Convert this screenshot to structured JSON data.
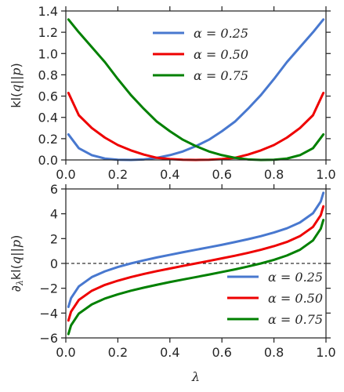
{
  "colors": {
    "alpha_025": "#4878cf",
    "alpha_050": "#ee0000",
    "alpha_075": "#008000"
  },
  "chart_data": [
    {
      "type": "line",
      "ylabel": "kl(q||p)",
      "xlim": [
        0.0,
        1.0
      ],
      "ylim": [
        0.0,
        1.4
      ],
      "xticks": [
        "0.0",
        "0.2",
        "0.4",
        "0.6",
        "0.8",
        "1.0"
      ],
      "yticks": [
        "0.0",
        "0.2",
        "0.4",
        "0.6",
        "0.8",
        "1.0",
        "1.2",
        "1.4"
      ],
      "grid": false,
      "legend": "top-center",
      "series": [
        {
          "name": "α = 0.25",
          "color_key": "alpha_025",
          "x": [
            0.01,
            0.05,
            0.1,
            0.15,
            0.2,
            0.25,
            0.3,
            0.35,
            0.4,
            0.45,
            0.5,
            0.55,
            0.6,
            0.65,
            0.7,
            0.75,
            0.8,
            0.85,
            0.9,
            0.95,
            0.99
          ],
          "y": [
            0.24,
            0.11,
            0.045,
            0.013,
            0.002,
            0.0,
            0.005,
            0.02,
            0.045,
            0.08,
            0.13,
            0.19,
            0.27,
            0.36,
            0.48,
            0.61,
            0.76,
            0.92,
            1.06,
            1.2,
            1.32
          ]
        },
        {
          "name": "α = 0.50",
          "color_key": "alpha_050",
          "x": [
            0.01,
            0.05,
            0.1,
            0.15,
            0.2,
            0.25,
            0.3,
            0.35,
            0.4,
            0.45,
            0.5,
            0.55,
            0.6,
            0.65,
            0.7,
            0.75,
            0.8,
            0.85,
            0.9,
            0.95,
            0.99
          ],
          "y": [
            0.63,
            0.42,
            0.3,
            0.21,
            0.14,
            0.09,
            0.05,
            0.02,
            0.008,
            0.002,
            0.0,
            0.002,
            0.008,
            0.02,
            0.05,
            0.09,
            0.14,
            0.21,
            0.3,
            0.42,
            0.63
          ]
        },
        {
          "name": "α = 0.75",
          "color_key": "alpha_075",
          "x": [
            0.01,
            0.05,
            0.1,
            0.15,
            0.2,
            0.25,
            0.3,
            0.35,
            0.4,
            0.45,
            0.5,
            0.55,
            0.6,
            0.65,
            0.7,
            0.75,
            0.8,
            0.85,
            0.9,
            0.95,
            0.99
          ],
          "y": [
            1.32,
            1.2,
            1.06,
            0.92,
            0.76,
            0.61,
            0.48,
            0.36,
            0.27,
            0.19,
            0.13,
            0.08,
            0.045,
            0.02,
            0.005,
            0.0,
            0.002,
            0.013,
            0.045,
            0.11,
            0.24
          ]
        }
      ]
    },
    {
      "type": "line",
      "xlabel": "λ",
      "ylabel": "∂λkl(q||p)",
      "xlim": [
        0.0,
        1.0
      ],
      "ylim": [
        -6,
        6
      ],
      "xticks": [
        "0.0",
        "0.2",
        "0.4",
        "0.6",
        "0.8",
        "1.0"
      ],
      "yticks": [
        "−6",
        "−4",
        "−2",
        "0",
        "2",
        "4",
        "6"
      ],
      "grid": false,
      "legend": "lower-right",
      "reference_line": {
        "y": 0,
        "style": "dashed"
      },
      "series": [
        {
          "name": "α = 0.25",
          "color_key": "alpha_025",
          "x": [
            0.01,
            0.02,
            0.05,
            0.1,
            0.15,
            0.2,
            0.25,
            0.3,
            0.35,
            0.4,
            0.45,
            0.5,
            0.55,
            0.6,
            0.65,
            0.7,
            0.75,
            0.8,
            0.85,
            0.9,
            0.95,
            0.98,
            0.99
          ],
          "y": [
            -3.5,
            -2.8,
            -1.85,
            -1.1,
            -0.64,
            -0.29,
            0.0,
            0.25,
            0.48,
            0.69,
            0.9,
            1.1,
            1.3,
            1.5,
            1.72,
            1.95,
            2.2,
            2.49,
            2.83,
            3.3,
            4.04,
            4.99,
            5.69
          ]
        },
        {
          "name": "α = 0.50",
          "color_key": "alpha_050",
          "x": [
            0.01,
            0.02,
            0.05,
            0.1,
            0.15,
            0.2,
            0.25,
            0.3,
            0.35,
            0.4,
            0.45,
            0.5,
            0.55,
            0.6,
            0.65,
            0.7,
            0.75,
            0.8,
            0.85,
            0.9,
            0.95,
            0.98,
            0.99
          ],
          "y": [
            -4.6,
            -3.89,
            -2.94,
            -2.2,
            -1.73,
            -1.39,
            -1.1,
            -0.85,
            -0.62,
            -0.41,
            -0.2,
            0.0,
            0.2,
            0.41,
            0.62,
            0.85,
            1.1,
            1.39,
            1.73,
            2.2,
            2.94,
            3.89,
            4.6
          ]
        },
        {
          "name": "α = 0.75",
          "color_key": "alpha_075",
          "x": [
            0.01,
            0.02,
            0.05,
            0.1,
            0.15,
            0.2,
            0.25,
            0.3,
            0.35,
            0.4,
            0.45,
            0.5,
            0.55,
            0.6,
            0.65,
            0.7,
            0.75,
            0.8,
            0.85,
            0.9,
            0.95,
            0.98,
            0.99
          ],
          "y": [
            -5.69,
            -4.99,
            -4.04,
            -3.3,
            -2.83,
            -2.49,
            -2.2,
            -1.95,
            -1.72,
            -1.5,
            -1.3,
            -1.1,
            -0.9,
            -0.69,
            -0.48,
            -0.25,
            0.0,
            0.29,
            0.64,
            1.1,
            1.85,
            2.8,
            3.5
          ]
        }
      ]
    }
  ]
}
